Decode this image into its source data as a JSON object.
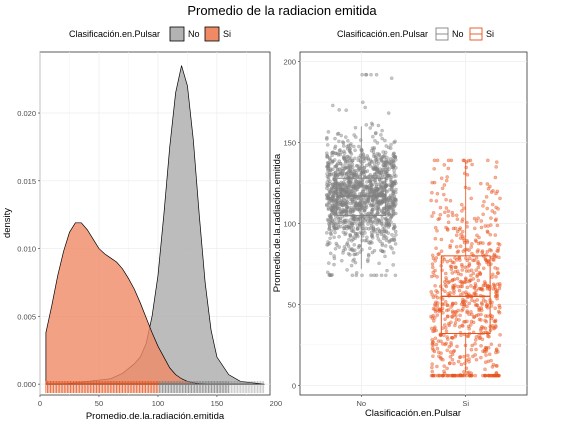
{
  "title": "Promedio de la radiacion emitida",
  "colors": {
    "no": "#808080",
    "si": "#e8521c",
    "no_fill": "#b3b3b3",
    "si_fill": "#f08a65",
    "overlap": "#cf6a4c"
  },
  "chart_data": [
    {
      "type": "area",
      "subtype": "density",
      "legend": {
        "title": "Clasificación.en.Pulsar",
        "position": "top",
        "entries": [
          "No",
          "Si"
        ]
      },
      "xlabel": "Promedio.de.la.radiación.emitida",
      "ylabel": "density",
      "xlim": [
        0,
        195
      ],
      "ylim": [
        -0.0008,
        0.0245
      ],
      "xticks": [
        0,
        50,
        100,
        150,
        200
      ],
      "yticks": [
        0.0,
        0.005,
        0.01,
        0.015,
        0.02
      ],
      "ytick_labels": [
        "0.000",
        "0.005",
        "0.010",
        "0.015",
        "0.020"
      ],
      "grid": true,
      "rug": true,
      "series": [
        {
          "name": "No",
          "x": [
            20,
            40,
            60,
            70,
            80,
            85,
            90,
            95,
            100,
            105,
            110,
            115,
            120,
            125,
            130,
            135,
            140,
            145,
            150,
            160,
            170,
            180,
            190
          ],
          "y": [
            0,
            0.0002,
            0.0004,
            0.0008,
            0.0015,
            0.002,
            0.003,
            0.005,
            0.008,
            0.0125,
            0.0175,
            0.0215,
            0.0235,
            0.022,
            0.018,
            0.0125,
            0.0075,
            0.004,
            0.002,
            0.0007,
            0.0002,
            0.0001,
            0
          ]
        },
        {
          "name": "Si",
          "x": [
            5,
            10,
            15,
            20,
            25,
            30,
            35,
            40,
            45,
            50,
            55,
            60,
            65,
            70,
            75,
            80,
            85,
            90,
            95,
            100,
            105,
            110,
            115,
            120,
            125,
            130,
            135,
            140
          ],
          "y": [
            0.0038,
            0.0058,
            0.008,
            0.0098,
            0.0112,
            0.0119,
            0.0119,
            0.0114,
            0.0107,
            0.01,
            0.0096,
            0.0093,
            0.009,
            0.0085,
            0.0078,
            0.007,
            0.006,
            0.0049,
            0.0038,
            0.0028,
            0.002,
            0.0012,
            0.0007,
            0.0004,
            0.0002,
            0.0001,
            3e-05,
            0
          ]
        }
      ]
    },
    {
      "type": "scatter",
      "subtype": "boxplot-jitter",
      "legend": {
        "title": "Clasificación.en.Pulsar",
        "position": "top",
        "entries": [
          "No",
          "Si"
        ]
      },
      "xlabel": "Clasificación.en.Pulsar",
      "ylabel": "Promedio.de.la.radiación.emitida",
      "categories": [
        "No",
        "Si"
      ],
      "ylim": [
        -6,
        206
      ],
      "yticks": [
        0,
        50,
        100,
        150,
        200
      ],
      "grid": true,
      "boxes": [
        {
          "name": "No",
          "q1": 105,
          "median": 117,
          "q3": 128,
          "whisker_low": 72,
          "whisker_high": 160,
          "n_points": 1400
        },
        {
          "name": "Si",
          "q1": 32,
          "median": 55,
          "q3": 80,
          "whisker_low": 8,
          "whisker_high": 138,
          "n_points": 700
        }
      ]
    }
  ]
}
